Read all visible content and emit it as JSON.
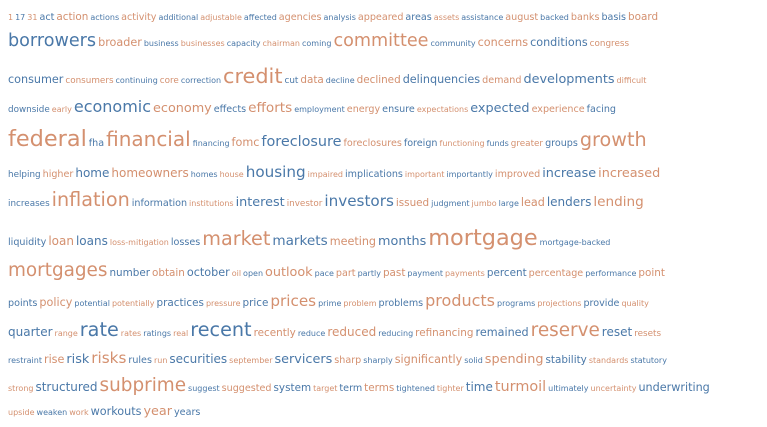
{
  "colors": {
    "orange": "#d4906f",
    "blue": "#4a78a8"
  },
  "lines": [
    {
      "words": [
        {
          "t": "1",
          "s": 10,
          "c": "o"
        },
        {
          "t": "17",
          "s": 10,
          "c": "b"
        },
        {
          "t": "31",
          "s": 10,
          "c": "o"
        },
        {
          "t": "act",
          "s": 12,
          "c": "b"
        },
        {
          "t": "action",
          "s": 13,
          "c": "o"
        },
        {
          "t": "actions",
          "s": 10,
          "c": "b"
        },
        {
          "t": "activity",
          "s": 12,
          "c": "o"
        },
        {
          "t": "additional",
          "s": 10,
          "c": "b"
        },
        {
          "t": "adjustable",
          "s": 10,
          "c": "o"
        },
        {
          "t": "affected",
          "s": 10,
          "c": "b"
        },
        {
          "t": "agencies",
          "s": 12,
          "c": "o"
        },
        {
          "t": "analysis",
          "s": 10,
          "c": "b"
        },
        {
          "t": "appeared",
          "s": 12,
          "c": "o"
        },
        {
          "t": "areas",
          "s": 12,
          "c": "b"
        },
        {
          "t": "assets",
          "s": 10,
          "c": "o"
        },
        {
          "t": "assistance",
          "s": 10,
          "c": "b"
        },
        {
          "t": "august",
          "s": 12,
          "c": "o"
        },
        {
          "t": "backed",
          "s": 10,
          "c": "b"
        },
        {
          "t": "banks",
          "s": 12,
          "c": "o"
        },
        {
          "t": "basis",
          "s": 12,
          "c": "b"
        },
        {
          "t": "board",
          "s": 13,
          "c": "o"
        }
      ]
    },
    {
      "words": [
        {
          "t": "borrowers",
          "s": 22,
          "c": "b"
        },
        {
          "t": "broader",
          "s": 14,
          "c": "o"
        },
        {
          "t": "business",
          "s": 10,
          "c": "b"
        },
        {
          "t": "businesses",
          "s": 10,
          "c": "o"
        },
        {
          "t": "capacity",
          "s": 10,
          "c": "b"
        },
        {
          "t": "chairman",
          "s": 10,
          "c": "o"
        },
        {
          "t": "coming",
          "s": 10,
          "c": "b"
        },
        {
          "t": "committee",
          "s": 22,
          "c": "o"
        },
        {
          "t": "community",
          "s": 10,
          "c": "b"
        },
        {
          "t": "concerns",
          "s": 14,
          "c": "o"
        },
        {
          "t": "conditions",
          "s": 14,
          "c": "b"
        },
        {
          "t": "congress",
          "s": 11,
          "c": "o"
        }
      ]
    },
    {
      "words": [
        {
          "t": "consumer",
          "s": 14,
          "c": "b"
        },
        {
          "t": "consumers",
          "s": 11,
          "c": "o"
        },
        {
          "t": "continuing",
          "s": 10,
          "c": "b"
        },
        {
          "t": "core",
          "s": 11,
          "c": "o"
        },
        {
          "t": "correction",
          "s": 10,
          "c": "b"
        },
        {
          "t": "credit",
          "s": 26,
          "c": "o"
        },
        {
          "t": "cut",
          "s": 11,
          "c": "b"
        },
        {
          "t": "data",
          "s": 13,
          "c": "o"
        },
        {
          "t": "decline",
          "s": 10,
          "c": "b"
        },
        {
          "t": "declined",
          "s": 13,
          "c": "o"
        },
        {
          "t": "delinquencies",
          "s": 14,
          "c": "b"
        },
        {
          "t": "demand",
          "s": 12,
          "c": "o"
        },
        {
          "t": "developments",
          "s": 16,
          "c": "b"
        },
        {
          "t": "difficult",
          "s": 10,
          "c": "o"
        }
      ]
    },
    {
      "words": [
        {
          "t": "downside",
          "s": 11,
          "c": "b"
        },
        {
          "t": "early",
          "s": 10,
          "c": "o"
        },
        {
          "t": "economic",
          "s": 20,
          "c": "b"
        },
        {
          "t": "economy",
          "s": 16,
          "c": "o"
        },
        {
          "t": "effects",
          "s": 12,
          "c": "b"
        },
        {
          "t": "efforts",
          "s": 17,
          "c": "o"
        },
        {
          "t": "employment",
          "s": 10,
          "c": "b"
        },
        {
          "t": "energy",
          "s": 12,
          "c": "o"
        },
        {
          "t": "ensure",
          "s": 12,
          "c": "b"
        },
        {
          "t": "expectations",
          "s": 10,
          "c": "o"
        },
        {
          "t": "expected",
          "s": 16,
          "c": "b"
        },
        {
          "t": "experience",
          "s": 12,
          "c": "o"
        },
        {
          "t": "facing",
          "s": 12,
          "c": "b"
        }
      ]
    },
    {
      "words": [
        {
          "t": "federal",
          "s": 28,
          "c": "o"
        },
        {
          "t": "fha",
          "s": 12,
          "c": "b"
        },
        {
          "t": "financial",
          "s": 25,
          "c": "o"
        },
        {
          "t": "financing",
          "s": 10,
          "c": "b"
        },
        {
          "t": "fomc",
          "s": 14,
          "c": "o"
        },
        {
          "t": "foreclosure",
          "s": 18,
          "c": "b"
        },
        {
          "t": "foreclosures",
          "s": 12,
          "c": "o"
        },
        {
          "t": "foreign",
          "s": 12,
          "c": "b"
        },
        {
          "t": "functioning",
          "s": 10,
          "c": "o"
        },
        {
          "t": "funds",
          "s": 10,
          "c": "b"
        },
        {
          "t": "greater",
          "s": 11,
          "c": "o"
        },
        {
          "t": "groups",
          "s": 12,
          "c": "b"
        },
        {
          "t": "growth",
          "s": 24,
          "c": "o"
        }
      ]
    },
    {
      "words": [
        {
          "t": "helping",
          "s": 11,
          "c": "b"
        },
        {
          "t": "higher",
          "s": 12,
          "c": "o"
        },
        {
          "t": "home",
          "s": 15,
          "c": "b"
        },
        {
          "t": "homeowners",
          "s": 15,
          "c": "o"
        },
        {
          "t": "homes",
          "s": 10,
          "c": "b"
        },
        {
          "t": "house",
          "s": 10,
          "c": "o"
        },
        {
          "t": "housing",
          "s": 19,
          "c": "b"
        },
        {
          "t": "impaired",
          "s": 10,
          "c": "o"
        },
        {
          "t": "implications",
          "s": 12,
          "c": "b"
        },
        {
          "t": "important",
          "s": 10,
          "c": "o"
        },
        {
          "t": "importantly",
          "s": 10,
          "c": "b"
        },
        {
          "t": "improved",
          "s": 12,
          "c": "o"
        },
        {
          "t": "increase",
          "s": 16,
          "c": "b"
        },
        {
          "t": "increased",
          "s": 16,
          "c": "o"
        }
      ]
    },
    {
      "words": [
        {
          "t": "increases",
          "s": 11,
          "c": "b"
        },
        {
          "t": "inflation",
          "s": 24,
          "c": "o"
        },
        {
          "t": "information",
          "s": 12,
          "c": "b"
        },
        {
          "t": "institutions",
          "s": 10,
          "c": "o"
        },
        {
          "t": "interest",
          "s": 16,
          "c": "b"
        },
        {
          "t": "investor",
          "s": 11,
          "c": "o"
        },
        {
          "t": "investors",
          "s": 19,
          "c": "b"
        },
        {
          "t": "issued",
          "s": 13,
          "c": "o"
        },
        {
          "t": "judgment",
          "s": 10,
          "c": "b"
        },
        {
          "t": "jumbo",
          "s": 10,
          "c": "o"
        },
        {
          "t": "large",
          "s": 10,
          "c": "b"
        },
        {
          "t": "lead",
          "s": 14,
          "c": "o"
        },
        {
          "t": "lenders",
          "s": 15,
          "c": "b"
        },
        {
          "t": "lending",
          "s": 17,
          "c": "o"
        }
      ]
    },
    {
      "words": [
        {
          "t": "liquidity",
          "s": 12,
          "c": "b"
        },
        {
          "t": "loan",
          "s": 15,
          "c": "o"
        },
        {
          "t": "loans",
          "s": 15,
          "c": "b"
        },
        {
          "t": "loss-mitigation",
          "s": 10,
          "c": "o"
        },
        {
          "t": "losses",
          "s": 12,
          "c": "b"
        },
        {
          "t": "market",
          "s": 24,
          "c": "o"
        },
        {
          "t": "markets",
          "s": 17,
          "c": "b"
        },
        {
          "t": "meeting",
          "s": 14,
          "c": "o"
        },
        {
          "t": "months",
          "s": 16,
          "c": "b"
        },
        {
          "t": "mortgage",
          "s": 28,
          "c": "o"
        },
        {
          "t": "mortgage-backed",
          "s": 10,
          "c": "b"
        }
      ]
    },
    {
      "words": [
        {
          "t": "mortgages",
          "s": 23,
          "c": "o"
        },
        {
          "t": "number",
          "s": 13,
          "c": "b"
        },
        {
          "t": "obtain",
          "s": 13,
          "c": "o"
        },
        {
          "t": "october",
          "s": 14,
          "c": "b"
        },
        {
          "t": "oil",
          "s": 10,
          "c": "o"
        },
        {
          "t": "open",
          "s": 10,
          "c": "b"
        },
        {
          "t": "outlook",
          "s": 16,
          "c": "o"
        },
        {
          "t": "pace",
          "s": 10,
          "c": "b"
        },
        {
          "t": "part",
          "s": 12,
          "c": "o"
        },
        {
          "t": "partly",
          "s": 10,
          "c": "b"
        },
        {
          "t": "past",
          "s": 13,
          "c": "o"
        },
        {
          "t": "payment",
          "s": 10,
          "c": "b"
        },
        {
          "t": "payments",
          "s": 10,
          "c": "o"
        },
        {
          "t": "percent",
          "s": 13,
          "c": "b"
        },
        {
          "t": "percentage",
          "s": 12,
          "c": "o"
        },
        {
          "t": "performance",
          "s": 10,
          "c": "b"
        },
        {
          "t": "point",
          "s": 13,
          "c": "o"
        }
      ]
    },
    {
      "words": [
        {
          "t": "points",
          "s": 12,
          "c": "b"
        },
        {
          "t": "policy",
          "s": 14,
          "c": "o"
        },
        {
          "t": "potential",
          "s": 10,
          "c": "b"
        },
        {
          "t": "potentially",
          "s": 10,
          "c": "o"
        },
        {
          "t": "practices",
          "s": 13,
          "c": "b"
        },
        {
          "t": "pressure",
          "s": 10,
          "c": "o"
        },
        {
          "t": "price",
          "s": 13,
          "c": "b"
        },
        {
          "t": "prices",
          "s": 19,
          "c": "o"
        },
        {
          "t": "prime",
          "s": 10,
          "c": "b"
        },
        {
          "t": "problem",
          "s": 10,
          "c": "o"
        },
        {
          "t": "problems",
          "s": 12,
          "c": "b"
        },
        {
          "t": "products",
          "s": 20,
          "c": "o"
        },
        {
          "t": "programs",
          "s": 10,
          "c": "b"
        },
        {
          "t": "projections",
          "s": 10,
          "c": "o"
        },
        {
          "t": "provide",
          "s": 12,
          "c": "b"
        },
        {
          "t": "quality",
          "s": 10,
          "c": "o"
        }
      ]
    },
    {
      "words": [
        {
          "t": "quarter",
          "s": 15,
          "c": "b"
        },
        {
          "t": "range",
          "s": 10,
          "c": "o"
        },
        {
          "t": "rate",
          "s": 24,
          "c": "b"
        },
        {
          "t": "rates",
          "s": 10,
          "c": "o"
        },
        {
          "t": "ratings",
          "s": 10,
          "c": "b"
        },
        {
          "t": "real",
          "s": 10,
          "c": "o"
        },
        {
          "t": "recent",
          "s": 24,
          "c": "b"
        },
        {
          "t": "recently",
          "s": 13,
          "c": "o"
        },
        {
          "t": "reduce",
          "s": 10,
          "c": "b"
        },
        {
          "t": "reduced",
          "s": 15,
          "c": "o"
        },
        {
          "t": "reducing",
          "s": 10,
          "c": "b"
        },
        {
          "t": "refinancing",
          "s": 13,
          "c": "o"
        },
        {
          "t": "remained",
          "s": 14,
          "c": "b"
        },
        {
          "t": "reserve",
          "s": 23,
          "c": "o"
        },
        {
          "t": "reset",
          "s": 15,
          "c": "b"
        },
        {
          "t": "resets",
          "s": 11,
          "c": "o"
        }
      ]
    },
    {
      "words": [
        {
          "t": "restraint",
          "s": 10,
          "c": "b"
        },
        {
          "t": "rise",
          "s": 14,
          "c": "o"
        },
        {
          "t": "risk",
          "s": 16,
          "c": "b"
        },
        {
          "t": "risks",
          "s": 19,
          "c": "o"
        },
        {
          "t": "rules",
          "s": 12,
          "c": "b"
        },
        {
          "t": "run",
          "s": 10,
          "c": "o"
        },
        {
          "t": "securities",
          "s": 15,
          "c": "b"
        },
        {
          "t": "september",
          "s": 10,
          "c": "o"
        },
        {
          "t": "servicers",
          "s": 16,
          "c": "b"
        },
        {
          "t": "sharp",
          "s": 12,
          "c": "o"
        },
        {
          "t": "sharply",
          "s": 10,
          "c": "b"
        },
        {
          "t": "significantly",
          "s": 14,
          "c": "o"
        },
        {
          "t": "solid",
          "s": 10,
          "c": "b"
        },
        {
          "t": "spending",
          "s": 16,
          "c": "o"
        },
        {
          "t": "stability",
          "s": 13,
          "c": "b"
        },
        {
          "t": "standards",
          "s": 10,
          "c": "o"
        },
        {
          "t": "statutory",
          "s": 10,
          "c": "b"
        }
      ]
    },
    {
      "words": [
        {
          "t": "strong",
          "s": 10,
          "c": "o"
        },
        {
          "t": "structured",
          "s": 15,
          "c": "b"
        },
        {
          "t": "subprime",
          "s": 23,
          "c": "o"
        },
        {
          "t": "suggest",
          "s": 10,
          "c": "b"
        },
        {
          "t": "suggested",
          "s": 12,
          "c": "o"
        },
        {
          "t": "system",
          "s": 13,
          "c": "b"
        },
        {
          "t": "target",
          "s": 10,
          "c": "o"
        },
        {
          "t": "term",
          "s": 12,
          "c": "b"
        },
        {
          "t": "terms",
          "s": 13,
          "c": "o"
        },
        {
          "t": "tightened",
          "s": 10,
          "c": "b"
        },
        {
          "t": "tighter",
          "s": 10,
          "c": "o"
        },
        {
          "t": "time",
          "s": 15,
          "c": "b"
        },
        {
          "t": "turmoil",
          "s": 18,
          "c": "o"
        },
        {
          "t": "ultimately",
          "s": 10,
          "c": "b"
        },
        {
          "t": "uncertainty",
          "s": 10,
          "c": "o"
        },
        {
          "t": "underwriting",
          "s": 14,
          "c": "b"
        }
      ]
    },
    {
      "words": [
        {
          "t": "upside",
          "s": 10,
          "c": "o"
        },
        {
          "t": "weaken",
          "s": 10,
          "c": "b"
        },
        {
          "t": "work",
          "s": 10,
          "c": "o"
        },
        {
          "t": "workouts",
          "s": 14,
          "c": "b"
        },
        {
          "t": "year",
          "s": 16,
          "c": "o"
        },
        {
          "t": "years",
          "s": 12,
          "c": "b"
        }
      ]
    }
  ]
}
